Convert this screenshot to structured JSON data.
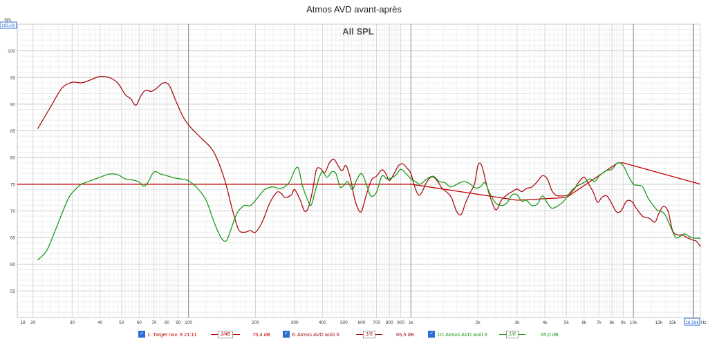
{
  "chart_data": {
    "type": "line",
    "title": "Atmos AVD avant-après",
    "subtitle": "All SPL",
    "ylabel": "SPL",
    "x_unit": "Hz",
    "x_scale": "log",
    "xlim": [
      17,
      20000
    ],
    "ylim": [
      50,
      105
    ],
    "y_top_box": "105,00",
    "x_right_box": "18,56k",
    "cursor_x": 18560,
    "y_ticks": [
      "55",
      "60",
      "65",
      "70",
      "75",
      "80",
      "85",
      "90",
      "95",
      "100"
    ],
    "x_ticks": [
      {
        "v": 18,
        "t": "18"
      },
      {
        "v": 20,
        "t": "20"
      },
      {
        "v": 30,
        "t": "30"
      },
      {
        "v": 40,
        "t": "40"
      },
      {
        "v": 50,
        "t": "50"
      },
      {
        "v": 60,
        "t": "60"
      },
      {
        "v": 70,
        "t": "70"
      },
      {
        "v": 80,
        "t": "80"
      },
      {
        "v": 90,
        "t": "90"
      },
      {
        "v": 100,
        "t": "100"
      },
      {
        "v": 200,
        "t": "200"
      },
      {
        "v": 300,
        "t": "300"
      },
      {
        "v": 400,
        "t": "400"
      },
      {
        "v": 500,
        "t": "500"
      },
      {
        "v": 600,
        "t": "600"
      },
      {
        "v": 700,
        "t": "700"
      },
      {
        "v": 800,
        "t": "800"
      },
      {
        "v": 900,
        "t": "900"
      },
      {
        "v": 1000,
        "t": "1k"
      },
      {
        "v": 2000,
        "t": "2k"
      },
      {
        "v": 3000,
        "t": "3k"
      },
      {
        "v": 4000,
        "t": "4k"
      },
      {
        "v": 5000,
        "t": "5k"
      },
      {
        "v": 6000,
        "t": "6k"
      },
      {
        "v": 7000,
        "t": "7k"
      },
      {
        "v": 8000,
        "t": "8k"
      },
      {
        "v": 9000,
        "t": "9k"
      },
      {
        "v": 10000,
        "t": "10k"
      },
      {
        "v": 13000,
        "t": "13k"
      },
      {
        "v": 15000,
        "t": "15k"
      },
      {
        "v": 17000,
        "t": "1"
      }
    ],
    "series": [
      {
        "name": "1: Target nov. 9 21:11",
        "color": "#c00000",
        "points": [
          [
            17,
            75
          ],
          [
            1000,
            75
          ],
          [
            3000,
            72
          ],
          [
            5000,
            72.5
          ],
          [
            8500,
            79
          ],
          [
            9000,
            79
          ],
          [
            20000,
            75
          ]
        ]
      },
      {
        "name": "6: Atmos AVD août 6",
        "color": "#a50f15",
        "points": [
          [
            21,
            85.4
          ],
          [
            24,
            89.5
          ],
          [
            27,
            93
          ],
          [
            30,
            94.1
          ],
          [
            33,
            94
          ],
          [
            36,
            94.5
          ],
          [
            40,
            95.2
          ],
          [
            44,
            95
          ],
          [
            48,
            94
          ],
          [
            52,
            91.8
          ],
          [
            55,
            91
          ],
          [
            58,
            89.8
          ],
          [
            61,
            91.5
          ],
          [
            64,
            92.6
          ],
          [
            68,
            92.4
          ],
          [
            72,
            93
          ],
          [
            77,
            94
          ],
          [
            82,
            93.5
          ],
          [
            88,
            90.5
          ],
          [
            95,
            87.5
          ],
          [
            103,
            85.5
          ],
          [
            115,
            83.5
          ],
          [
            130,
            81
          ],
          [
            145,
            76
          ],
          [
            158,
            70
          ],
          [
            168,
            66.5
          ],
          [
            178,
            66
          ],
          [
            190,
            66.3
          ],
          [
            200,
            66
          ],
          [
            215,
            68
          ],
          [
            232,
            71.5
          ],
          [
            250,
            73.5
          ],
          [
            262,
            73.2
          ],
          [
            272,
            72.5
          ],
          [
            290,
            73
          ],
          [
            300,
            74
          ],
          [
            318,
            72
          ],
          [
            332,
            70
          ],
          [
            345,
            70.5
          ],
          [
            360,
            73.5
          ],
          [
            375,
            77.6
          ],
          [
            390,
            78
          ],
          [
            410,
            77.2
          ],
          [
            430,
            79
          ],
          [
            450,
            79.7
          ],
          [
            470,
            78.5
          ],
          [
            490,
            77.5
          ],
          [
            510,
            78.5
          ],
          [
            535,
            76
          ],
          [
            560,
            72
          ],
          [
            595,
            69.8
          ],
          [
            630,
            73
          ],
          [
            665,
            75.8
          ],
          [
            700,
            76.5
          ],
          [
            740,
            77.7
          ],
          [
            770,
            77
          ],
          [
            800,
            75.7
          ],
          [
            840,
            77
          ],
          [
            880,
            78.5
          ],
          [
            920,
            78.8
          ],
          [
            960,
            78
          ],
          [
            1000,
            77
          ],
          [
            1040,
            74.5
          ],
          [
            1080,
            73
          ],
          [
            1120,
            73.5
          ],
          [
            1180,
            75.5
          ],
          [
            1250,
            76.4
          ],
          [
            1320,
            75.5
          ],
          [
            1380,
            74.2
          ],
          [
            1450,
            73.5
          ],
          [
            1520,
            72.5
          ],
          [
            1600,
            70
          ],
          [
            1680,
            69.3
          ],
          [
            1760,
            71.5
          ],
          [
            1850,
            73.5
          ],
          [
            1930,
            75
          ],
          [
            2000,
            78.5
          ],
          [
            2080,
            78.5
          ],
          [
            2200,
            74.5
          ],
          [
            2320,
            71.5
          ],
          [
            2420,
            70.2
          ],
          [
            2550,
            72
          ],
          [
            2700,
            73
          ],
          [
            2850,
            73.6
          ],
          [
            3000,
            74.1
          ],
          [
            3150,
            73.6
          ],
          [
            3300,
            74.2
          ],
          [
            3500,
            74.5
          ],
          [
            3700,
            75.5
          ],
          [
            3900,
            76.6
          ],
          [
            4100,
            76
          ],
          [
            4300,
            73.8
          ],
          [
            4500,
            72.9
          ],
          [
            4800,
            72.8
          ],
          [
            5100,
            73
          ],
          [
            5400,
            74
          ],
          [
            5700,
            75.5
          ],
          [
            6000,
            76.3
          ],
          [
            6300,
            75
          ],
          [
            6600,
            73.5
          ],
          [
            6900,
            71.6
          ],
          [
            7200,
            72.5
          ],
          [
            7600,
            72.8
          ],
          [
            8000,
            71.3
          ],
          [
            8400,
            69.8
          ],
          [
            8800,
            70
          ],
          [
            9300,
            71.8
          ],
          [
            9800,
            71.8
          ],
          [
            10300,
            70.5
          ],
          [
            11000,
            69
          ],
          [
            11800,
            68.6
          ],
          [
            12500,
            67.9
          ],
          [
            13000,
            69.5
          ],
          [
            13600,
            70.8
          ],
          [
            14300,
            70
          ],
          [
            15000,
            66.3
          ],
          [
            15800,
            65.5
          ],
          [
            16600,
            65.5
          ],
          [
            17400,
            65
          ],
          [
            18300,
            64.6
          ],
          [
            19200,
            64.3
          ],
          [
            20000,
            63.3
          ]
        ]
      },
      {
        "name": "10: Atmos AVD août 6",
        "color": "#1a9b1a",
        "points": [
          [
            21,
            60.8
          ],
          [
            23,
            62.5
          ],
          [
            25,
            66
          ],
          [
            27,
            69.5
          ],
          [
            29,
            72.5
          ],
          [
            31,
            74
          ],
          [
            33,
            75
          ],
          [
            36,
            75.6
          ],
          [
            40,
            76.3
          ],
          [
            44,
            76.9
          ],
          [
            48,
            76.8
          ],
          [
            52,
            76
          ],
          [
            56,
            75.8
          ],
          [
            60,
            75.4
          ],
          [
            63,
            74.6
          ],
          [
            66,
            75.5
          ],
          [
            70,
            77.3
          ],
          [
            75,
            76.9
          ],
          [
            80,
            76.6
          ],
          [
            86,
            76.2
          ],
          [
            92,
            76
          ],
          [
            98,
            75.8
          ],
          [
            103,
            75.3
          ],
          [
            110,
            74.2
          ],
          [
            120,
            72
          ],
          [
            130,
            68
          ],
          [
            140,
            65
          ],
          [
            148,
            64.4
          ],
          [
            155,
            66.5
          ],
          [
            165,
            69.5
          ],
          [
            178,
            71
          ],
          [
            190,
            71
          ],
          [
            205,
            72.5
          ],
          [
            220,
            74
          ],
          [
            240,
            74.5
          ],
          [
            255,
            74.2
          ],
          [
            270,
            74.5
          ],
          [
            285,
            75.5
          ],
          [
            300,
            77.6
          ],
          [
            312,
            78
          ],
          [
            325,
            74.8
          ],
          [
            340,
            72.5
          ],
          [
            355,
            71
          ],
          [
            370,
            73.5
          ],
          [
            385,
            76
          ],
          [
            400,
            77.3
          ],
          [
            420,
            76.3
          ],
          [
            440,
            77.3
          ],
          [
            460,
            77
          ],
          [
            480,
            74.5
          ],
          [
            500,
            74.8
          ],
          [
            520,
            75.5
          ],
          [
            545,
            74
          ],
          [
            570,
            75.8
          ],
          [
            600,
            77
          ],
          [
            630,
            75
          ],
          [
            660,
            72.8
          ],
          [
            700,
            73.5
          ],
          [
            740,
            76.5
          ],
          [
            780,
            76
          ],
          [
            820,
            76.2
          ],
          [
            860,
            76.8
          ],
          [
            900,
            77.8
          ],
          [
            950,
            77
          ],
          [
            1000,
            76
          ],
          [
            1050,
            75.5
          ],
          [
            1100,
            75
          ],
          [
            1180,
            76
          ],
          [
            1260,
            76.5
          ],
          [
            1340,
            75.5
          ],
          [
            1420,
            75.3
          ],
          [
            1500,
            74.5
          ],
          [
            1580,
            74.8
          ],
          [
            1660,
            75.3
          ],
          [
            1750,
            75.5
          ],
          [
            1850,
            75
          ],
          [
            1950,
            74.3
          ],
          [
            2050,
            74.5
          ],
          [
            2150,
            75.3
          ],
          [
            2250,
            73.5
          ],
          [
            2400,
            71.5
          ],
          [
            2550,
            71
          ],
          [
            2700,
            71.5
          ],
          [
            2850,
            73
          ],
          [
            3000,
            73
          ],
          [
            3150,
            71.8
          ],
          [
            3300,
            72
          ],
          [
            3500,
            71
          ],
          [
            3700,
            71.3
          ],
          [
            3900,
            72.8
          ],
          [
            4100,
            71.5
          ],
          [
            4300,
            70.5
          ],
          [
            4600,
            71
          ],
          [
            4900,
            72
          ],
          [
            5200,
            73.5
          ],
          [
            5500,
            74.5
          ],
          [
            5800,
            75
          ],
          [
            6100,
            75.5
          ],
          [
            6400,
            76
          ],
          [
            6700,
            75.5
          ],
          [
            7000,
            76.5
          ],
          [
            7500,
            77.5
          ],
          [
            8000,
            77.8
          ],
          [
            8500,
            79
          ],
          [
            9000,
            78.5
          ],
          [
            9500,
            76.5
          ],
          [
            10000,
            75
          ],
          [
            10500,
            74.8
          ],
          [
            11000,
            74.5
          ],
          [
            11600,
            72.5
          ],
          [
            12200,
            71.2
          ],
          [
            12800,
            70.1
          ],
          [
            13400,
            69.9
          ],
          [
            14000,
            69
          ],
          [
            14700,
            67
          ],
          [
            15500,
            65
          ],
          [
            16300,
            65.3
          ],
          [
            17000,
            65.7
          ],
          [
            17800,
            65.2
          ],
          [
            18600,
            64.9
          ],
          [
            19300,
            64.9
          ],
          [
            20000,
            64.8
          ]
        ]
      }
    ]
  },
  "legend": {
    "items": [
      {
        "name": "1: Target nov. 9 21:11",
        "smoothing": "1/48",
        "level": "75,4 dB",
        "color": "#c00000"
      },
      {
        "name": "6: Atmos AVD août 6",
        "smoothing": "1/6",
        "level": "65,5 dB",
        "color": "#a50f15"
      },
      {
        "name": "10: Atmos AVD août 6",
        "smoothing": "1/6",
        "level": "65,0 dB",
        "color": "#1a9b1a"
      }
    ]
  }
}
